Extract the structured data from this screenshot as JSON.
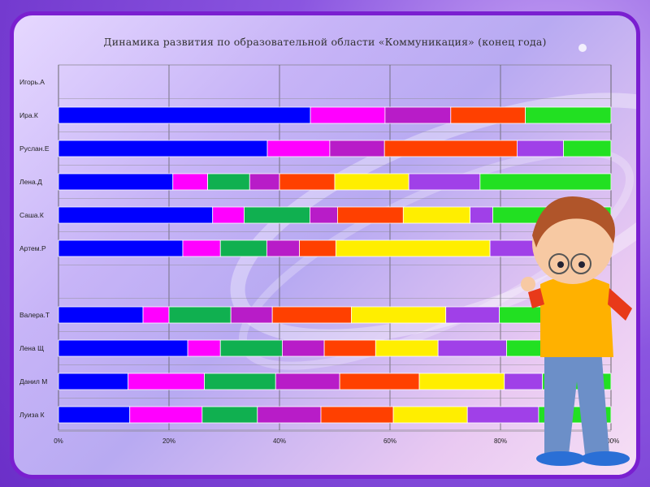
{
  "chart_data": {
    "type": "bar",
    "orientation": "horizontal-stacked-100",
    "title": "Динамика развития по образовательной области «Коммуникация» (конец года)",
    "xlabel": "",
    "ylabel": "",
    "xlim": [
      0,
      100
    ],
    "x_ticks": [
      "0%",
      "20%",
      "40%",
      "60%",
      "80%",
      "100%"
    ],
    "grid": true,
    "legend": "none",
    "categories": [
      "Игорь.А",
      "Ира.К",
      "Руслан.Е",
      "Лена.Д",
      "Саша.К",
      "Артем.Р",
      "",
      "Валера.Т",
      "Лена Щ",
      "Данил М",
      "Луиза К"
    ],
    "rows": [
      {
        "name": "Игорь.А",
        "segments": []
      },
      {
        "name": "Ира.К",
        "segments": [
          [
            "#0000ff",
            45.6
          ],
          [
            "#ff00ff",
            13.5
          ],
          [
            "#b81cc8",
            11.9
          ],
          [
            "#ff4000",
            13.5
          ],
          [
            "#22e022",
            15.5
          ]
        ]
      },
      {
        "name": "Руслан.Е",
        "segments": [
          [
            "#0000ff",
            37.8
          ],
          [
            "#ff00ff",
            11.3
          ],
          [
            "#b81cc8",
            9.9
          ],
          [
            "#ff4000",
            24.0
          ],
          [
            "#a040e8",
            8.4
          ],
          [
            "#22e022",
            8.6
          ]
        ]
      },
      {
        "name": "Лена.Д",
        "segments": [
          [
            "#0000ff",
            20.7
          ],
          [
            "#ff00ff",
            6.3
          ],
          [
            "#10b050",
            7.6
          ],
          [
            "#b81cc8",
            5.4
          ],
          [
            "#ff4000",
            10.0
          ],
          [
            "#ffee00",
            13.4
          ],
          [
            "#a040e8",
            12.9
          ],
          [
            "#22e022",
            23.7
          ]
        ]
      },
      {
        "name": "Саша.К",
        "segments": [
          [
            "#0000ff",
            27.9
          ],
          [
            "#ff00ff",
            5.7
          ],
          [
            "#10b050",
            11.9
          ],
          [
            "#b81cc8",
            5.0
          ],
          [
            "#ff4000",
            11.9
          ],
          [
            "#ffee00",
            12.1
          ],
          [
            "#a040e8",
            4.1
          ],
          [
            "#22e022",
            21.4
          ]
        ]
      },
      {
        "name": "Артем.Р",
        "segments": [
          [
            "#0000ff",
            22.5
          ],
          [
            "#ff00ff",
            6.8
          ],
          [
            "#10b050",
            8.4
          ],
          [
            "#b81cc8",
            5.9
          ],
          [
            "#ff4000",
            6.6
          ],
          [
            "#ffee00",
            27.9
          ],
          [
            "#a040e8",
            9.1
          ],
          [
            "#22e022",
            12.8
          ]
        ]
      },
      {
        "name": "",
        "segments": []
      },
      {
        "name": "Валера.Т",
        "segments": [
          [
            "#0000ff",
            15.3
          ],
          [
            "#ff00ff",
            4.7
          ],
          [
            "#10b050",
            11.2
          ],
          [
            "#b81cc8",
            7.5
          ],
          [
            "#ff4000",
            14.3
          ],
          [
            "#ffee00",
            17.1
          ],
          [
            "#a040e8",
            9.7
          ],
          [
            "#22e022",
            20.2
          ]
        ]
      },
      {
        "name": "Лена Щ",
        "segments": [
          [
            "#0000ff",
            23.4
          ],
          [
            "#ff00ff",
            5.9
          ],
          [
            "#10b050",
            11.2
          ],
          [
            "#b81cc8",
            7.6
          ],
          [
            "#ff4000",
            9.3
          ],
          [
            "#ffee00",
            11.3
          ],
          [
            "#a040e8",
            12.4
          ],
          [
            "#22e022",
            18.9
          ]
        ]
      },
      {
        "name": "Данил М",
        "segments": [
          [
            "#0000ff",
            12.6
          ],
          [
            "#ff00ff",
            13.8
          ],
          [
            "#10b050",
            12.9
          ],
          [
            "#b81cc8",
            11.6
          ],
          [
            "#ff4000",
            14.4
          ],
          [
            "#ffee00",
            15.4
          ],
          [
            "#a040e8",
            6.9
          ],
          [
            "#22e022",
            12.4
          ]
        ]
      },
      {
        "name": "Луиза К",
        "segments": [
          [
            "#0000ff",
            12.9
          ],
          [
            "#ff00ff",
            13.1
          ],
          [
            "#10b050",
            10.0
          ],
          [
            "#b81cc8",
            11.5
          ],
          [
            "#ff4000",
            13.1
          ],
          [
            "#ffee00",
            13.4
          ],
          [
            "#a040e8",
            12.9
          ],
          [
            "#22e022",
            13.1
          ]
        ]
      }
    ]
  }
}
